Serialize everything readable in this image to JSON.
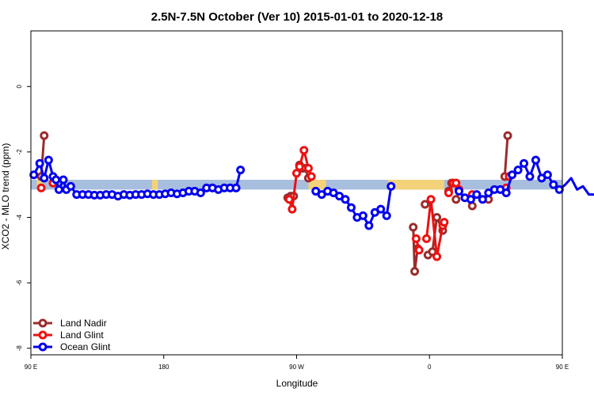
{
  "chart_data": {
    "type": "line",
    "title": "2.5N-7.5N October (Ver 10)   2015-01-01 to 2020-12-18",
    "xlabel": "Longitude",
    "ylabel": "XCO2 - MLO trend (ppm)",
    "xlim": [
      90,
      450
    ],
    "ylim": [
      -8.2,
      1.7
    ],
    "x_ticks": [
      {
        "value": 90,
        "label": "90 E"
      },
      {
        "value": 180,
        "label": "180"
      },
      {
        "value": 270,
        "label": "90 W"
      },
      {
        "value": 360,
        "label": "0"
      },
      {
        "value": 450,
        "label": "90 E"
      },
      {
        "value": 540,
        "label": "180"
      }
    ],
    "y_ticks": [
      {
        "value": 0,
        "label": "0"
      },
      {
        "value": -2,
        "label": "-2"
      },
      {
        "value": -4,
        "label": "-4"
      },
      {
        "value": -6,
        "label": "-6"
      },
      {
        "value": -8,
        "label": "-8"
      }
    ],
    "legend_position": "bottom-left",
    "land_band": {
      "y_low": -3.15,
      "y_high": -2.85,
      "color": "#a8bedf",
      "land_color": "#f3d27a"
    },
    "land_segments": [
      [
        94,
        98
      ],
      [
        172,
        176
      ],
      [
        278,
        290
      ],
      [
        332,
        370
      ],
      [
        460,
        462
      ],
      [
        482,
        488
      ],
      [
        507,
        509
      ]
    ],
    "series": [
      {
        "name": "Land Nadir",
        "color": "#9b2c2c",
        "segments": [
          [
            [
              97,
              -2.75
            ],
            [
              99,
              -1.5
            ]
          ],
          [
            [
              264,
              -3.4
            ],
            [
              266,
              -3.35
            ],
            [
              268,
              -3.35
            ]
          ],
          [
            [
              272,
              -2.4
            ],
            [
              274,
              -2.5
            ],
            [
              276,
              -2.5
            ],
            [
              278,
              -2.8
            ]
          ],
          [
            [
              349,
              -4.3
            ],
            [
              350,
              -5.65
            ],
            [
              352,
              -4.95
            ]
          ],
          [
            [
              359,
              -5.15
            ],
            [
              362,
              -5.05
            ],
            [
              365,
              -4.0
            ],
            [
              369,
              -4.4
            ]
          ],
          [
            [
              357,
              -3.6
            ]
          ],
          [
            [
              373,
              -3.2
            ],
            [
              375,
              -2.95
            ]
          ],
          [
            [
              378,
              -3.45
            ]
          ],
          [
            [
              389,
              -3.65
            ]
          ],
          [
            [
              400,
              -3.45
            ]
          ],
          [
            [
              411,
              -2.75
            ],
            [
              413,
              -1.5
            ]
          ],
          [
            [
              474,
              -3.4
            ]
          ]
        ]
      },
      {
        "name": "Land Glint",
        "color": "#ee1010",
        "segments": [
          [
            [
              97,
              -3.1
            ]
          ],
          [
            [
              105,
              -2.95
            ]
          ],
          [
            [
              265,
              -3.45
            ],
            [
              267,
              -3.75
            ],
            [
              270,
              -2.65
            ],
            [
              272,
              -2.45
            ],
            [
              275,
              -1.95
            ],
            [
              278,
              -2.5
            ],
            [
              280,
              -2.75
            ]
          ],
          [
            [
              351,
              -4.65
            ],
            [
              353,
              -5.0
            ]
          ],
          [
            [
              358,
              -4.65
            ],
            [
              361,
              -3.45
            ],
            [
              365,
              -5.2
            ],
            [
              369,
              -4.25
            ],
            [
              370,
              -4.15
            ]
          ],
          [
            [
              373,
              -3.25
            ],
            [
              376,
              -2.95
            ],
            [
              378,
              -2.95
            ],
            [
              380,
              -3.15
            ]
          ],
          [
            [
              389,
              -3.3
            ]
          ],
          [
            [
              412,
              -3.1
            ]
          ],
          [
            [
              414,
              -2.75
            ]
          ]
        ]
      },
      {
        "name": "Ocean Glint",
        "color": "#0000ee",
        "segments": [
          [
            [
              92,
              -2.7
            ],
            [
              96,
              -2.35
            ],
            [
              99,
              -2.8
            ],
            [
              102,
              -2.25
            ],
            [
              105,
              -2.75
            ],
            [
              107,
              -2.85
            ],
            [
              109,
              -3.15
            ],
            [
              112,
              -2.85
            ],
            [
              114,
              -3.15
            ],
            [
              117,
              -3.05
            ],
            [
              121,
              -3.3
            ],
            [
              125,
              -3.3
            ],
            [
              129,
              -3.3
            ],
            [
              133,
              -3.32
            ],
            [
              137,
              -3.32
            ],
            [
              141,
              -3.3
            ],
            [
              145,
              -3.3
            ],
            [
              149,
              -3.35
            ],
            [
              153,
              -3.3
            ],
            [
              157,
              -3.32
            ],
            [
              161,
              -3.3
            ],
            [
              165,
              -3.3
            ],
            [
              169,
              -3.28
            ],
            [
              173,
              -3.3
            ],
            [
              177,
              -3.3
            ],
            [
              181,
              -3.28
            ],
            [
              185,
              -3.25
            ],
            [
              189,
              -3.28
            ],
            [
              193,
              -3.25
            ],
            [
              197,
              -3.2
            ],
            [
              201,
              -3.2
            ],
            [
              205,
              -3.25
            ],
            [
              209,
              -3.1
            ],
            [
              213,
              -3.1
            ],
            [
              217,
              -3.15
            ],
            [
              221,
              -3.1
            ],
            [
              225,
              -3.1
            ],
            [
              229,
              -3.1
            ],
            [
              232,
              -2.55
            ]
          ],
          [
            [
              283,
              -3.2
            ],
            [
              287,
              -3.3
            ],
            [
              291,
              -3.2
            ],
            [
              295,
              -3.25
            ],
            [
              299,
              -3.35
            ],
            [
              303,
              -3.45
            ],
            [
              307,
              -3.7
            ],
            [
              311,
              -4.0
            ],
            [
              315,
              -3.95
            ],
            [
              319,
              -4.25
            ],
            [
              323,
              -3.85
            ],
            [
              327,
              -3.75
            ],
            [
              331,
              -3.95
            ],
            [
              334,
              -3.05
            ]
          ],
          [
            [
              380,
              -3.2
            ],
            [
              384,
              -3.4
            ],
            [
              388,
              -3.45
            ],
            [
              392,
              -3.3
            ],
            [
              396,
              -3.45
            ],
            [
              400,
              -3.25
            ],
            [
              404,
              -3.15
            ],
            [
              408,
              -3.15
            ],
            [
              412,
              -3.25
            ],
            [
              416,
              -2.7
            ],
            [
              420,
              -2.55
            ],
            [
              424,
              -2.35
            ],
            [
              428,
              -2.75
            ],
            [
              432,
              -2.25
            ],
            [
              436,
              -2.8
            ],
            [
              440,
              -2.7
            ],
            [
              444,
              -3.0
            ],
            [
              448,
              -3.15
            ],
            [
              452,
              -3.0
            ],
            [
              456,
              -2.8
            ],
            [
              460,
              -3.15
            ],
            [
              464,
              -3.05
            ],
            [
              468,
              -3.3
            ],
            [
              472,
              -3.3
            ],
            [
              476,
              -3.3
            ],
            [
              480,
              -3.32
            ],
            [
              484,
              -3.32
            ],
            [
              488,
              -3.3
            ]
          ]
        ]
      }
    ]
  }
}
